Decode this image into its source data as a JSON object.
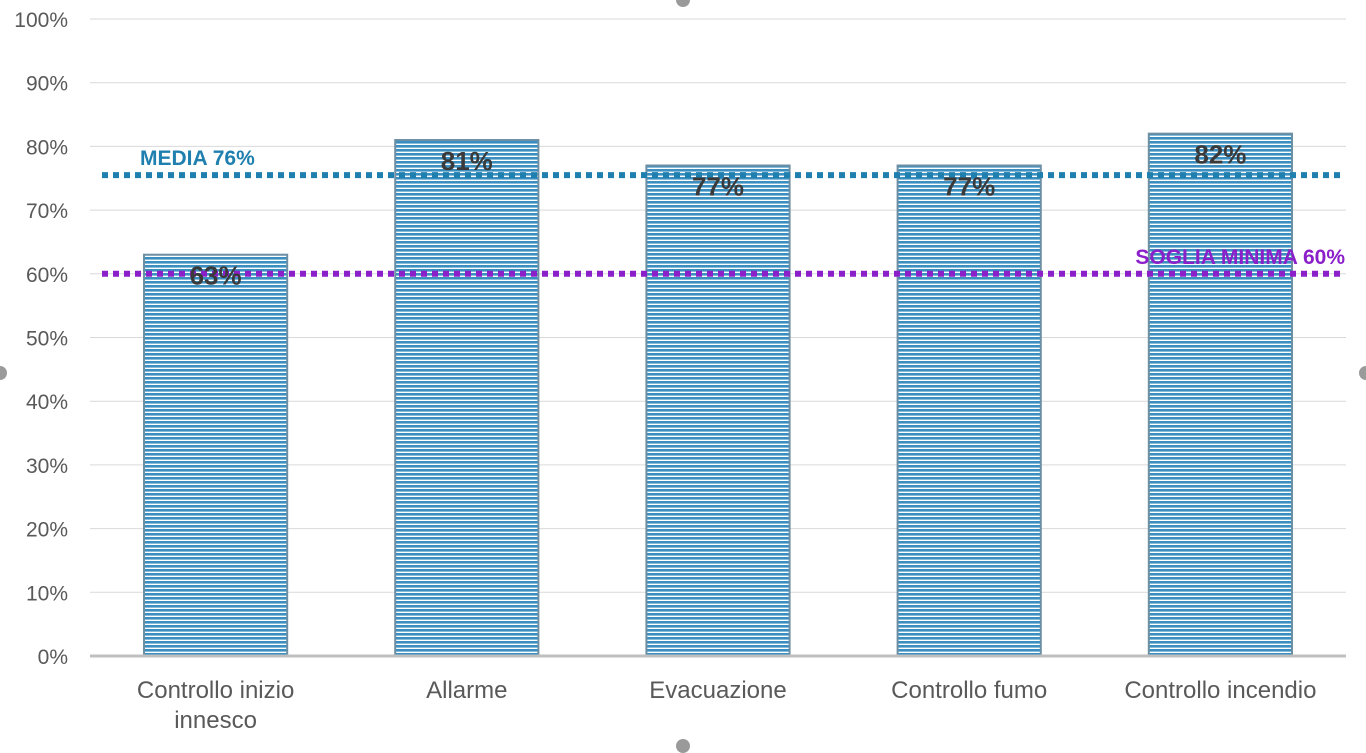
{
  "chart_data": {
    "type": "bar",
    "title": "",
    "xlabel": "",
    "ylabel": "",
    "categories": [
      [
        "Controllo inizio",
        "innesco"
      ],
      [
        "Allarme"
      ],
      [
        "Evacuazione"
      ],
      [
        "Controllo fumo"
      ],
      [
        "Controllo incendio"
      ]
    ],
    "values": [
      63,
      81,
      77,
      77,
      82
    ],
    "value_labels": [
      "63%",
      "81%",
      "77%",
      "77%",
      "82%"
    ],
    "ylim": [
      0,
      100
    ],
    "yticks": [
      {
        "v": 0,
        "label": "0%"
      },
      {
        "v": 10,
        "label": "10%"
      },
      {
        "v": 20,
        "label": "20%"
      },
      {
        "v": 30,
        "label": "30%"
      },
      {
        "v": 40,
        "label": "40%"
      },
      {
        "v": 50,
        "label": "50%"
      },
      {
        "v": 60,
        "label": "60%"
      },
      {
        "v": 70,
        "label": "70%"
      },
      {
        "v": 80,
        "label": "80%"
      },
      {
        "v": 90,
        "label": "90%"
      },
      {
        "v": 100,
        "label": "100%"
      }
    ],
    "grid": true,
    "reference_lines": [
      {
        "value": 75.5,
        "label": "MEDIA 76%",
        "color": "#1f7fae",
        "label_align": "left"
      },
      {
        "value": 60,
        "label": "SOGLIA MINIMA 60%",
        "color": "#8b1fc9",
        "label_align": "right"
      }
    ],
    "colors": {
      "bar_fill": "#3a8fc0",
      "bar_stripe": "#ffffff",
      "bar_border": "#6d8fa3",
      "axis_text": "#595959",
      "value_label": "#3a3a3a",
      "grid": "#d9d9d9",
      "axis_line": "#bfbfbf"
    }
  }
}
